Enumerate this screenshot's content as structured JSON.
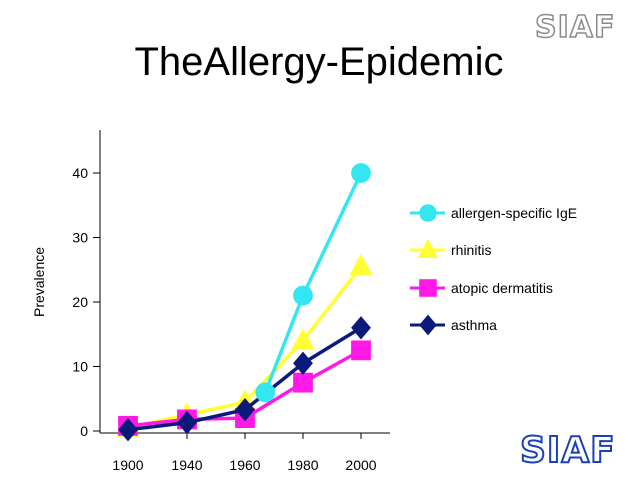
{
  "slide": {
    "title": "TheAllergy-Epidemic",
    "logo_top": "SIAF",
    "logo_bottom": "SIAF"
  },
  "chart_data": {
    "type": "line",
    "title": "TheAllergy-Epidemic",
    "xlabel": "",
    "ylabel": "Prevalence",
    "x_ticks": [
      "1900",
      "1940",
      "1960",
      "1980",
      "2000"
    ],
    "y_ticks": [
      "0",
      "10",
      "20",
      "30",
      "40"
    ],
    "ylim": [
      0,
      45
    ],
    "legend": "right",
    "grid": false,
    "series": [
      {
        "name": "allergen-specific IgE",
        "color": "#33e6f0",
        "marker": "circle",
        "points": [
          {
            "x": "1967",
            "y": 6
          },
          {
            "x": "1980",
            "y": 21
          },
          {
            "x": "2000",
            "y": 40
          }
        ]
      },
      {
        "name": "rhinitis",
        "color": "#ffff33",
        "marker": "triangle",
        "points": [
          {
            "x": "1900",
            "y": 0.5
          },
          {
            "x": "1940",
            "y": 2.5
          },
          {
            "x": "1960",
            "y": 4.5
          },
          {
            "x": "1980",
            "y": 14
          },
          {
            "x": "2000",
            "y": 25.5
          }
        ]
      },
      {
        "name": "atopic dermatitis",
        "color": "#ff19e6",
        "marker": "square",
        "points": [
          {
            "x": "1900",
            "y": 0.8
          },
          {
            "x": "1940",
            "y": 1.8
          },
          {
            "x": "1960",
            "y": 2
          },
          {
            "x": "1980",
            "y": 7.5
          },
          {
            "x": "2000",
            "y": 12.5
          }
        ]
      },
      {
        "name": "asthma",
        "color": "#0a1a7a",
        "marker": "diamond",
        "points": [
          {
            "x": "1900",
            "y": 0.2
          },
          {
            "x": "1940",
            "y": 1.3
          },
          {
            "x": "1960",
            "y": 3.3
          },
          {
            "x": "1980",
            "y": 10.5
          },
          {
            "x": "2000",
            "y": 16
          }
        ]
      }
    ]
  }
}
